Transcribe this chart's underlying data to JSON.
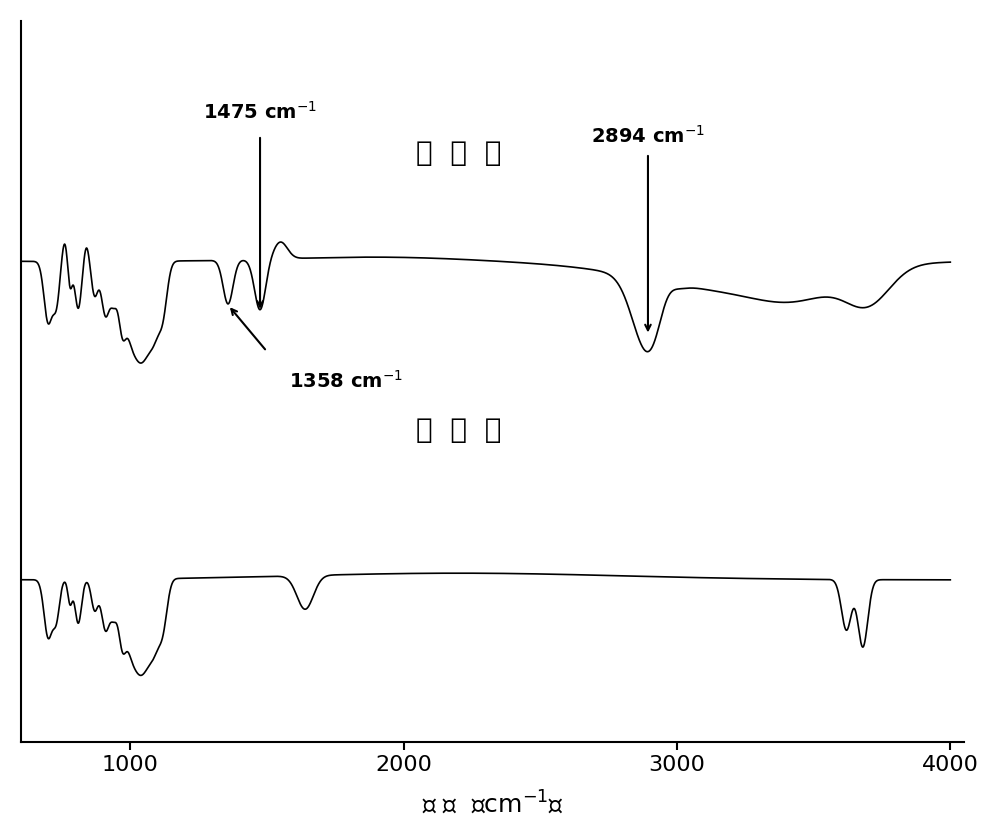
{
  "xmin": 600,
  "xmax": 4000,
  "xlabel": "波 数  （cm⁻¹）",
  "label_modified": "改  性  后",
  "label_unmodified": "改  性  前",
  "annotation_1475": "1475 cm⁻¹",
  "annotation_2894": "2894 cm⁻¹",
  "annotation_1358": "1358 cm⁻¹",
  "line_color": "#000000",
  "bg_color": "#ffffff",
  "tick_labels": [
    "1000",
    "2000",
    "3000",
    "4000"
  ]
}
